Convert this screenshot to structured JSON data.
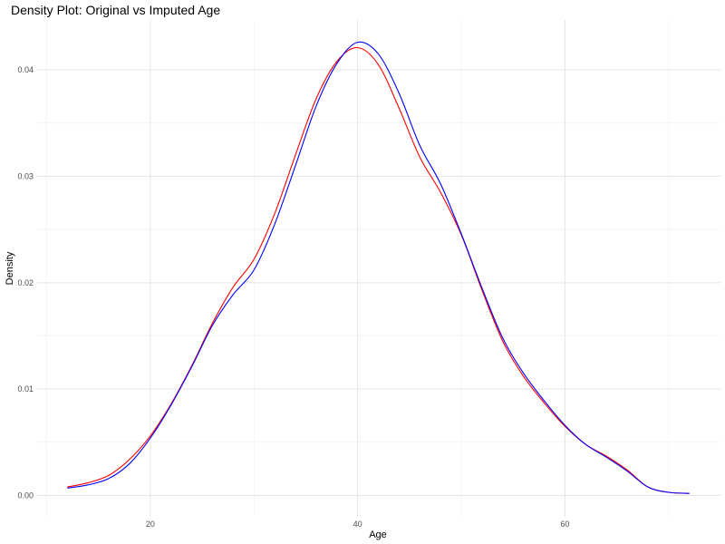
{
  "chart_data": {
    "type": "line",
    "title": "Density Plot: Original vs Imputed Age",
    "xlabel": "Age",
    "ylabel": "Density",
    "xlim": [
      9,
      75
    ],
    "ylim": [
      -0.002,
      0.0447
    ],
    "x_ticks": [
      20,
      40,
      60
    ],
    "x_tick_labels": [
      "20",
      "40",
      "60"
    ],
    "y_ticks": [
      0,
      0.01,
      0.02,
      0.03,
      0.04
    ],
    "y_tick_labels": [
      "0.00",
      "0.01",
      "0.02",
      "0.03",
      "0.04"
    ],
    "grid": true,
    "legend": "none",
    "series": [
      {
        "color": "#ff0000",
        "x": [
          12,
          14,
          16,
          18,
          20,
          22,
          24,
          26,
          28,
          30,
          32,
          34,
          36,
          38,
          40,
          42,
          44,
          46,
          48,
          50,
          52,
          54,
          56,
          58,
          60,
          62,
          64,
          66,
          68,
          70,
          72
        ],
        "y": [
          0.0008,
          0.0012,
          0.0019,
          0.0034,
          0.0056,
          0.0086,
          0.0122,
          0.0162,
          0.0196,
          0.0222,
          0.0265,
          0.032,
          0.0373,
          0.0408,
          0.0421,
          0.0405,
          0.0364,
          0.0318,
          0.0285,
          0.0245,
          0.0193,
          0.0145,
          0.0112,
          0.0087,
          0.0065,
          0.0048,
          0.0037,
          0.0024,
          0.0008,
          0.0003,
          0.0002
        ]
      },
      {
        "color": "#0000ff",
        "x": [
          12,
          14,
          16,
          18,
          20,
          22,
          24,
          26,
          28,
          30,
          32,
          34,
          36,
          38,
          40,
          42,
          44,
          46,
          48,
          50,
          52,
          54,
          56,
          58,
          60,
          62,
          64,
          66,
          68,
          70,
          72
        ],
        "y": [
          0.0007,
          0.001,
          0.0016,
          0.003,
          0.0054,
          0.0085,
          0.0121,
          0.016,
          0.0189,
          0.0212,
          0.0255,
          0.031,
          0.0366,
          0.0406,
          0.0426,
          0.0415,
          0.0378,
          0.0329,
          0.0293,
          0.0246,
          0.0195,
          0.0148,
          0.0115,
          0.0089,
          0.0066,
          0.0048,
          0.0036,
          0.0023,
          0.0008,
          0.0003,
          0.0002
        ]
      }
    ]
  }
}
